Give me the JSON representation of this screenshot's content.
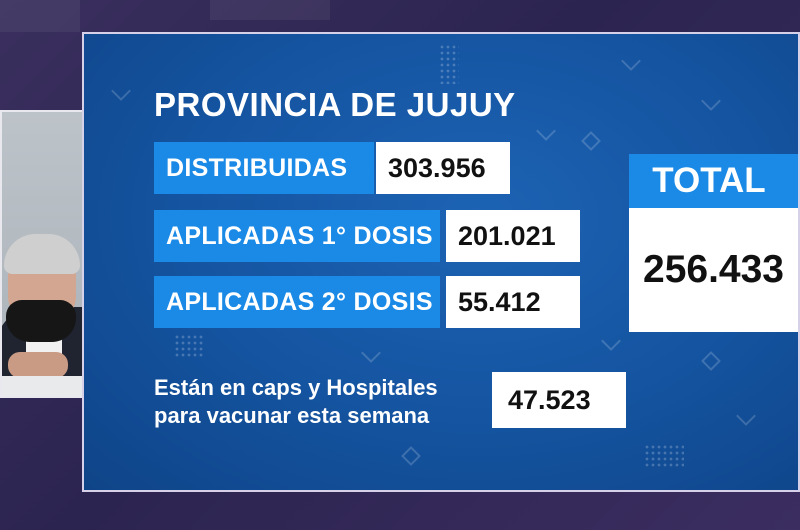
{
  "board": {
    "title": "PROVINCIA DE JUJUY",
    "rows": [
      {
        "label": "DISTRIBUIDAS",
        "value": "303.956"
      },
      {
        "label": "APLICADAS 1° DOSIS",
        "value": "201.021"
      },
      {
        "label": "APLICADAS 2° DOSIS",
        "value": "55.412"
      }
    ],
    "pending": {
      "line1": "Están en caps y Hospitales",
      "line2": "para vacunar esta semana",
      "value": "47.523"
    },
    "total": {
      "label": "TOTAL",
      "value": "256.433"
    }
  },
  "colors": {
    "label_blue": "#1a8ae6",
    "board_blue": "#14539f",
    "background_purple": "#2c2450"
  },
  "icons": [
    "chevron-decor",
    "diamond-decor",
    "dot-grid-decor"
  ]
}
